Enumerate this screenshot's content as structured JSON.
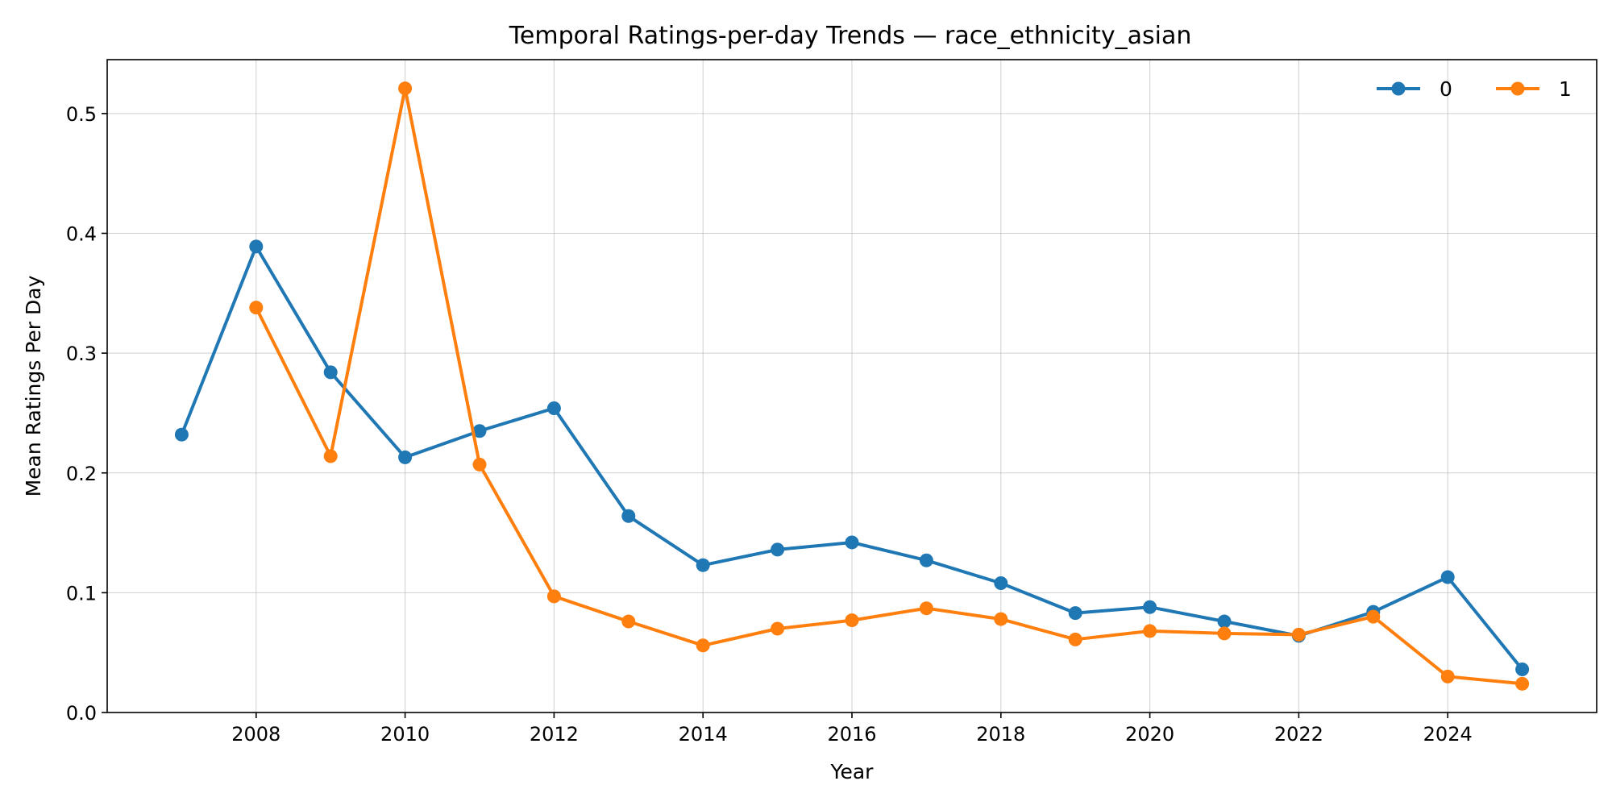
{
  "chart_data": {
    "type": "line",
    "title": "Temporal Ratings-per-day Trends — race_ethnicity_asian",
    "xlabel": "Year",
    "ylabel": "Mean Ratings Per Day",
    "xlim": [
      2006.0,
      2026.0
    ],
    "ylim": [
      0.0,
      0.545
    ],
    "xticks": [
      2008,
      2010,
      2012,
      2014,
      2016,
      2018,
      2020,
      2022,
      2024
    ],
    "yticks": [
      0.0,
      0.1,
      0.2,
      0.3,
      0.4,
      0.5
    ],
    "xtick_labels": [
      "2008",
      "2010",
      "2012",
      "2014",
      "2016",
      "2018",
      "2020",
      "2022",
      "2024"
    ],
    "ytick_labels": [
      "0.0",
      "0.1",
      "0.2",
      "0.3",
      "0.4",
      "0.5"
    ],
    "grid": true,
    "legend_position": "top-right",
    "series": [
      {
        "name": "0",
        "color": "#1f77b4",
        "marker": "circle",
        "x": [
          2007,
          2008,
          2009,
          2010,
          2011,
          2012,
          2013,
          2014,
          2015,
          2016,
          2017,
          2018,
          2019,
          2020,
          2021,
          2022,
          2023,
          2024,
          2025
        ],
        "y": [
          0.232,
          0.389,
          0.284,
          0.213,
          0.235,
          0.254,
          0.164,
          0.123,
          0.136,
          0.142,
          0.127,
          0.108,
          0.083,
          0.088,
          0.076,
          0.064,
          0.084,
          0.113,
          0.036
        ]
      },
      {
        "name": "1",
        "color": "#ff7f0e",
        "marker": "circle",
        "x": [
          2008,
          2009,
          2010,
          2011,
          2012,
          2013,
          2014,
          2015,
          2016,
          2017,
          2018,
          2019,
          2020,
          2021,
          2022,
          2023,
          2024,
          2025
        ],
        "y": [
          0.338,
          0.214,
          0.521,
          0.207,
          0.097,
          0.076,
          0.056,
          0.07,
          0.077,
          0.087,
          0.078,
          0.061,
          0.068,
          0.066,
          0.065,
          0.08,
          0.03,
          0.024
        ]
      }
    ]
  }
}
